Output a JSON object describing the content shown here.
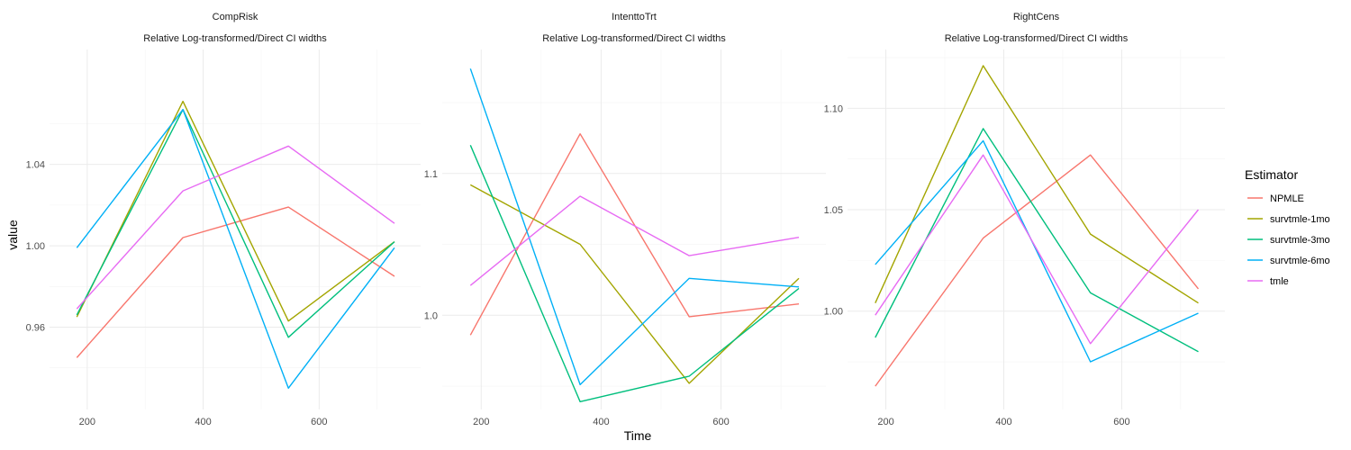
{
  "chart_data": {
    "type": "line",
    "ylabel": "value",
    "xlabel": "Time",
    "legend": {
      "title": "Estimator",
      "placement": "right",
      "entries": [
        "NPMLE",
        "survtmle-1mo",
        "survtmle-3mo",
        "survtmle-6mo",
        "tmle"
      ]
    },
    "colors": {
      "NPMLE": "#F8766D",
      "survtmle-1mo": "#A3A500",
      "survtmle-3mo": "#00BF7D",
      "survtmle-6mo": "#00B0F6",
      "tmle": "#E76BF3"
    },
    "grid": true,
    "x": [
      182,
      365,
      547,
      730
    ],
    "facets": [
      {
        "title": "CompRisk",
        "subtitle": "Relative Log-transformed/Direct CI widths",
        "xlim": [
          135,
          775
        ],
        "ylim": [
          0.9195,
          1.0965
        ],
        "xticks": [
          200,
          400,
          600
        ],
        "xtick_labels": [
          "200",
          "400",
          "600"
        ],
        "yticks": [
          0.96,
          1.0,
          1.04
        ],
        "ytick_labels": [
          "0.96",
          "1.00",
          "1.04"
        ],
        "yminor": [
          0.94,
          0.98,
          1.02,
          1.06
        ],
        "series": [
          {
            "name": "NPMLE",
            "values": [
              0.945,
              1.004,
              1.019,
              0.985
            ]
          },
          {
            "name": "survtmle-1mo",
            "values": [
              0.965,
              1.071,
              0.963,
              1.002
            ]
          },
          {
            "name": "survtmle-3mo",
            "values": [
              0.966,
              1.067,
              0.955,
              1.002
            ]
          },
          {
            "name": "survtmle-6mo",
            "values": [
              0.999,
              1.067,
              0.93,
              0.999
            ]
          },
          {
            "name": "tmle",
            "values": [
              0.969,
              1.027,
              1.049,
              1.011
            ]
          }
        ]
      },
      {
        "title": "IntenttoTrt",
        "subtitle": "Relative Log-transformed/Direct CI widths",
        "xlim": [
          135,
          775
        ],
        "ylim": [
          0.9335,
          1.1875
        ],
        "xticks": [
          200,
          400,
          600
        ],
        "xtick_labels": [
          "200",
          "400",
          "600"
        ],
        "yticks": [
          1.0,
          1.1
        ],
        "ytick_labels": [
          "1.0",
          "1.1"
        ],
        "yminor": [
          0.95,
          1.05,
          1.15
        ],
        "series": [
          {
            "name": "NPMLE",
            "values": [
              0.986,
              1.128,
              0.999,
              1.008
            ]
          },
          {
            "name": "survtmle-1mo",
            "values": [
              1.092,
              1.05,
              0.952,
              1.026
            ]
          },
          {
            "name": "survtmle-3mo",
            "values": [
              1.12,
              0.939,
              0.957,
              1.019
            ]
          },
          {
            "name": "survtmle-6mo",
            "values": [
              1.174,
              0.951,
              1.026,
              1.02
            ]
          },
          {
            "name": "tmle",
            "values": [
              1.021,
              1.084,
              1.042,
              1.055
            ]
          }
        ]
      },
      {
        "title": "RightCens",
        "subtitle": "Relative Log-transformed/Direct CI widths",
        "xlim": [
          135,
          775
        ],
        "ylim": [
          0.9515,
          1.129
        ],
        "xticks": [
          200,
          400,
          600
        ],
        "xtick_labels": [
          "200",
          "400",
          "600"
        ],
        "yticks": [
          1.0,
          1.05,
          1.1
        ],
        "ytick_labels": [
          "1.00",
          "1.05",
          "1.10"
        ],
        "yminor": [
          0.975,
          1.025,
          1.075,
          1.125
        ],
        "series": [
          {
            "name": "NPMLE",
            "values": [
              0.963,
              1.036,
              1.077,
              1.011
            ]
          },
          {
            "name": "survtmle-1mo",
            "values": [
              1.004,
              1.121,
              1.038,
              1.004
            ]
          },
          {
            "name": "survtmle-3mo",
            "values": [
              0.987,
              1.09,
              1.009,
              0.98
            ]
          },
          {
            "name": "survtmle-6mo",
            "values": [
              1.023,
              1.084,
              0.975,
              0.999
            ]
          },
          {
            "name": "tmle",
            "values": [
              0.998,
              1.077,
              0.984,
              1.05
            ]
          }
        ]
      }
    ]
  }
}
